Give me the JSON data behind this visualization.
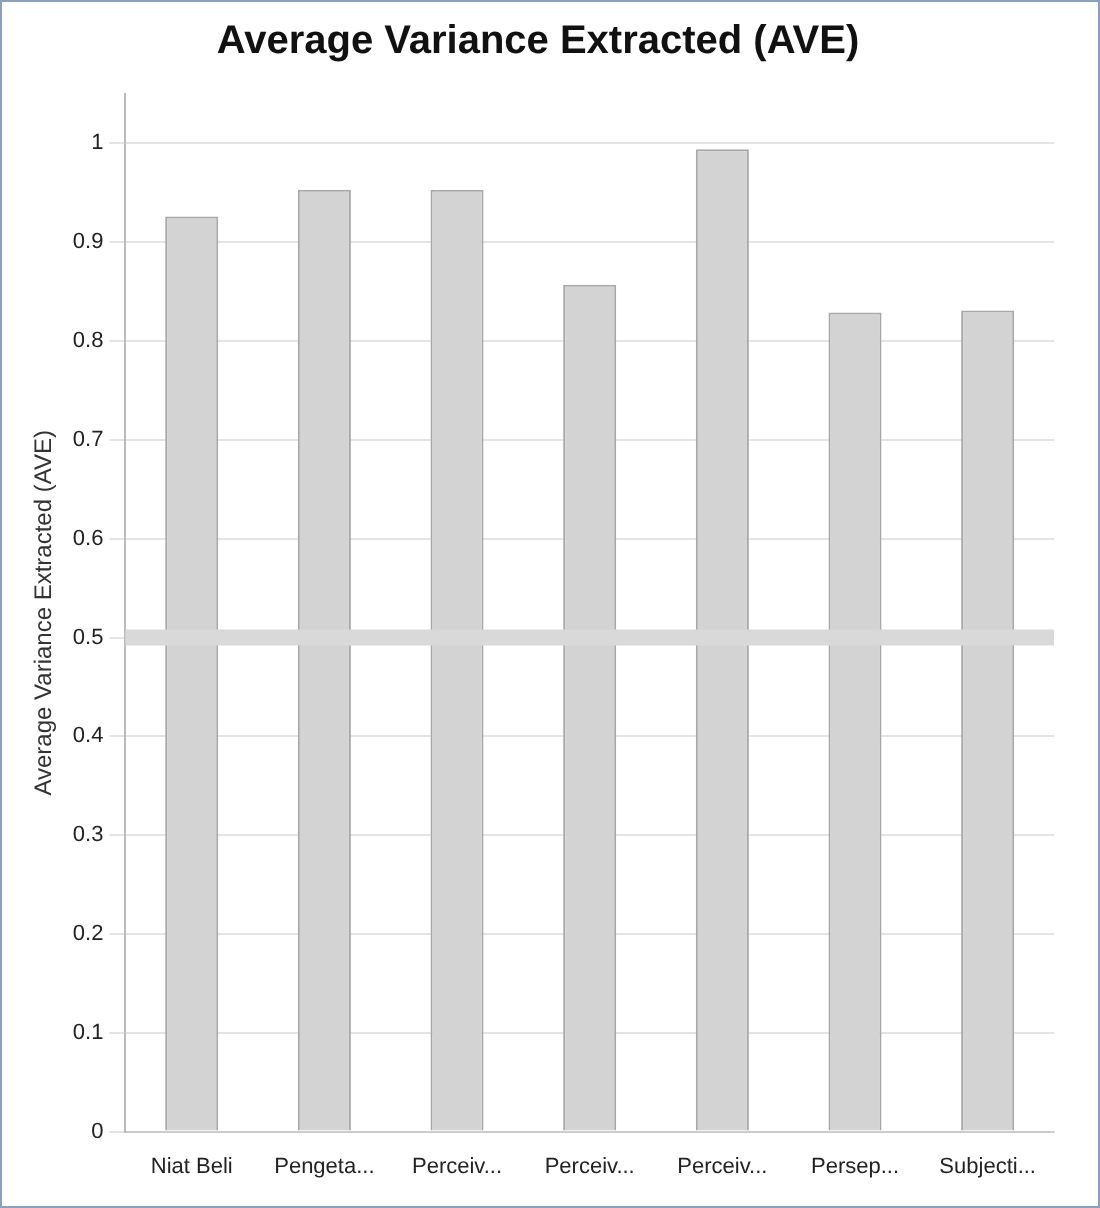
{
  "chart_data": {
    "type": "bar",
    "title": "Average Variance Extracted (AVE)",
    "ylabel": "Average Variance Extracted (AVE)",
    "categories": [
      "Niat Beli",
      "Pengeta...",
      "Perceiv...",
      "Perceiv...",
      "Perceiv...",
      "Persep...",
      "Subjecti..."
    ],
    "values": [
      0.926,
      0.953,
      0.953,
      0.857,
      0.994,
      0.829,
      0.831
    ],
    "color": "#d3d3d3",
    "ylim": [
      0,
      1.05
    ],
    "yticks": [
      0,
      0.1,
      0.2,
      0.3,
      0.4,
      0.5,
      0.6,
      0.7,
      0.8,
      0.9,
      1
    ],
    "grid": "y",
    "legend": false,
    "ref_lines": [
      {
        "axis": "y",
        "value": 0.5,
        "color": "#d9d9d9"
      }
    ]
  }
}
